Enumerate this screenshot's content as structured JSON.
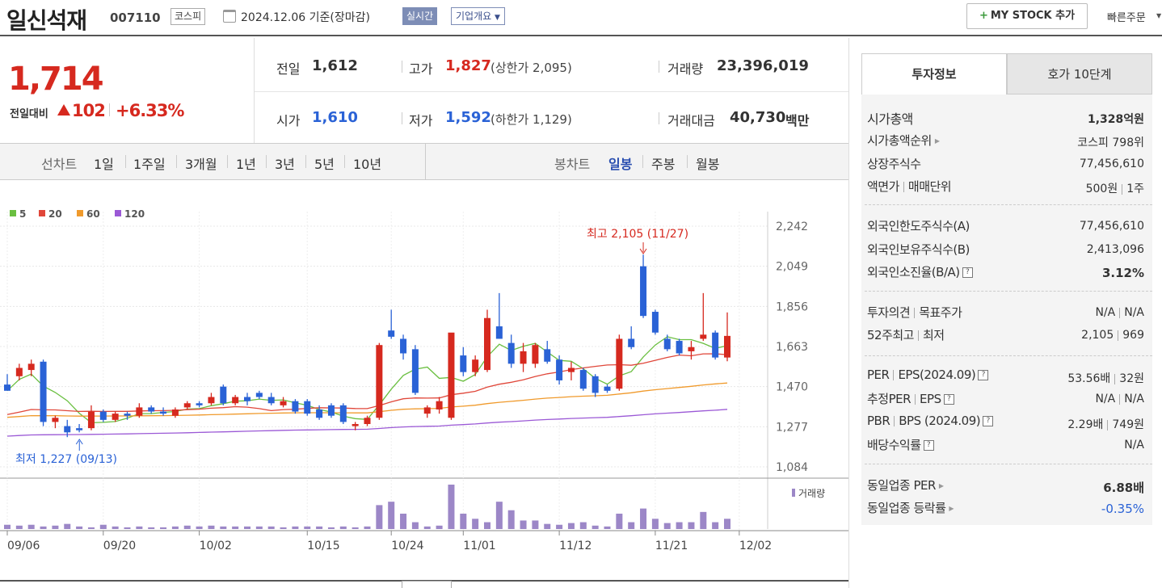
{
  "header": {
    "name": "일신석재",
    "code": "007110",
    "market": "코스피",
    "date": "2024.12.06 기준(장마감)",
    "realtime": "실시간",
    "company_info": "기업개요",
    "mystock": "MY STOCK 추가",
    "quick_order": "빠른주문"
  },
  "price": {
    "current": "1,714",
    "change_label": "전일대비",
    "change": "102",
    "change_pct": "+6.33%"
  },
  "quote": {
    "prev_label": "전일",
    "prev": "1,612",
    "high_label": "고가",
    "high": "1,827",
    "upper_limit": "(상한가 2,095)",
    "volume_label": "거래량",
    "volume": "23,396,019",
    "open_label": "시가",
    "open": "1,610",
    "low_label": "저가",
    "low": "1,592",
    "lower_limit": "(하한가 1,129)",
    "amount_label": "거래대금",
    "amount": "40,730",
    "amount_unit": "백만"
  },
  "periods": {
    "line_label": "선차트",
    "line": [
      "1일",
      "1주일",
      "3개월",
      "1년",
      "3년",
      "5년",
      "10년"
    ],
    "candle_label": "봉차트",
    "candle": [
      "일봉",
      "주봉",
      "월봉"
    ]
  },
  "colors": {
    "up": "#d6291f",
    "down": "#2a62d6",
    "ma5": "#6abf40",
    "ma20": "#e0473a",
    "ma60": "#f09a2c",
    "ma120": "#9b59d6",
    "volume": "#9c87c7"
  },
  "chart_data": {
    "type": "candlestick",
    "legend": [
      "5",
      "20",
      "60",
      "120"
    ],
    "yticks": [
      2242,
      2049,
      1856,
      1663,
      1470,
      1277,
      1084
    ],
    "ylim": [
      1084,
      2242
    ],
    "xticks": [
      "09/06",
      "09/20",
      "10/02",
      "10/15",
      "10/24",
      "11/01",
      "11/12",
      "11/21",
      "12/02"
    ],
    "annotations": {
      "high": "최고 2,105 (11/27)",
      "low": "최저 1,227 (09/13)"
    },
    "volume_label": "거래량",
    "candles": [
      [
        1480,
        1530,
        1460,
        1450
      ],
      [
        1520,
        1580,
        1500,
        1560
      ],
      [
        1550,
        1600,
        1520,
        1580
      ],
      [
        1590,
        1600,
        1280,
        1300
      ],
      [
        1300,
        1330,
        1270,
        1320
      ],
      [
        1280,
        1310,
        1227,
        1250
      ],
      [
        1270,
        1290,
        1250,
        1260
      ],
      [
        1270,
        1380,
        1260,
        1350
      ],
      [
        1350,
        1360,
        1300,
        1310
      ],
      [
        1310,
        1350,
        1300,
        1340
      ],
      [
        1340,
        1350,
        1310,
        1330
      ],
      [
        1330,
        1390,
        1320,
        1370
      ],
      [
        1370,
        1380,
        1340,
        1350
      ],
      [
        1350,
        1370,
        1330,
        1340
      ],
      [
        1330,
        1370,
        1320,
        1360
      ],
      [
        1370,
        1400,
        1360,
        1390
      ],
      [
        1390,
        1400,
        1370,
        1380
      ],
      [
        1390,
        1440,
        1380,
        1420
      ],
      [
        1470,
        1480,
        1380,
        1390
      ],
      [
        1390,
        1430,
        1380,
        1420
      ],
      [
        1420,
        1440,
        1380,
        1400
      ],
      [
        1440,
        1450,
        1410,
        1420
      ],
      [
        1420,
        1440,
        1380,
        1390
      ],
      [
        1380,
        1420,
        1370,
        1400
      ],
      [
        1400,
        1410,
        1340,
        1350
      ],
      [
        1400,
        1410,
        1330,
        1340
      ],
      [
        1360,
        1380,
        1310,
        1320
      ],
      [
        1380,
        1390,
        1320,
        1330
      ],
      [
        1380,
        1390,
        1290,
        1300
      ],
      [
        1280,
        1300,
        1260,
        1290
      ],
      [
        1290,
        1330,
        1280,
        1320
      ],
      [
        1320,
        1680,
        1310,
        1670
      ],
      [
        1740,
        1840,
        1700,
        1710
      ],
      [
        1700,
        1720,
        1600,
        1630
      ],
      [
        1650,
        1670,
        1430,
        1440
      ],
      [
        1340,
        1380,
        1320,
        1370
      ],
      [
        1360,
        1420,
        1340,
        1400
      ],
      [
        1320,
        1720,
        1310,
        1730
      ],
      [
        1620,
        1660,
        1520,
        1540
      ],
      [
        1540,
        1620,
        1520,
        1600
      ],
      [
        1550,
        1840,
        1540,
        1800
      ],
      [
        1760,
        1920,
        1700,
        1700
      ],
      [
        1680,
        1720,
        1560,
        1580
      ],
      [
        1580,
        1680,
        1540,
        1640
      ],
      [
        1580,
        1680,
        1560,
        1670
      ],
      [
        1650,
        1690,
        1580,
        1590
      ],
      [
        1600,
        1620,
        1480,
        1500
      ],
      [
        1540,
        1590,
        1500,
        1560
      ],
      [
        1550,
        1560,
        1450,
        1460
      ],
      [
        1520,
        1530,
        1420,
        1440
      ],
      [
        1470,
        1480,
        1440,
        1450
      ],
      [
        1460,
        1720,
        1450,
        1700
      ],
      [
        1700,
        1760,
        1650,
        1660
      ],
      [
        2049,
        2105,
        1800,
        1810
      ],
      [
        1830,
        1840,
        1720,
        1730
      ],
      [
        1700,
        1720,
        1640,
        1650
      ],
      [
        1690,
        1700,
        1620,
        1630
      ],
      [
        1640,
        1690,
        1600,
        1660
      ],
      [
        1700,
        1920,
        1690,
        1720
      ],
      [
        1730,
        1740,
        1600,
        1610
      ],
      [
        1610,
        1827,
        1592,
        1714
      ]
    ],
    "volume": [
      5,
      4,
      5,
      3,
      4,
      6,
      3,
      2,
      5,
      3,
      2,
      3,
      2,
      2,
      3,
      4,
      3,
      4,
      3,
      3,
      3,
      3,
      3,
      2,
      3,
      3,
      3,
      2,
      3,
      2,
      3,
      28,
      32,
      18,
      8,
      3,
      4,
      52,
      18,
      12,
      8,
      32,
      22,
      10,
      10,
      6,
      5,
      7,
      8,
      4,
      3,
      18,
      8,
      24,
      12,
      7,
      8,
      8,
      20,
      8,
      12
    ]
  },
  "invest": {
    "tab1": "투자정보",
    "tab2": "호가 10단계",
    "rows": [
      {
        "label": "시가총액",
        "value": "1,328억원",
        "bold": true
      },
      {
        "label": "시가총액순위",
        "value": "코스피 798위"
      },
      {
        "label": "상장주식수",
        "value": "77,456,610"
      },
      {
        "label": "액면가",
        "label2": "매매단위",
        "value": "500원",
        "value2": "1주"
      },
      {
        "label": "외국인한도주식수(A)",
        "value": "77,456,610"
      },
      {
        "label": "외국인보유주식수(B)",
        "value": "2,413,096"
      },
      {
        "label": "외국인소진율(B/A)",
        "value": "3.12%",
        "bold": true
      },
      {
        "label": "투자의견",
        "label2": "목표주가",
        "value": "N/A",
        "value2": "N/A"
      },
      {
        "label": "52주최고",
        "label2": "최저",
        "value": "2,105",
        "value2": "969"
      },
      {
        "label": "PER",
        "label2": "EPS(2024.09)",
        "value": "53.56배",
        "value2": "32원"
      },
      {
        "label": "추정PER",
        "label2": "EPS",
        "value": "N/A",
        "value2": "N/A"
      },
      {
        "label": "PBR",
        "label2": "BPS (2024.09)",
        "value": "2.29배",
        "value2": "749원"
      },
      {
        "label": "배당수익률",
        "value": "N/A"
      },
      {
        "label": "동일업종 PER",
        "value": "6.88배",
        "bold": true
      },
      {
        "label": "동일업종 등락률",
        "value": "-0.35%"
      }
    ]
  }
}
